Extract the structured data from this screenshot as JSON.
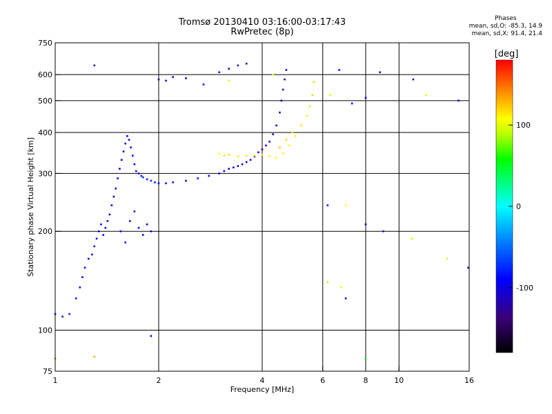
{
  "header": {
    "title_line1": "Tromsø 20130410 03:16:00-03:17:43",
    "title_line2": "RwPretec (8p)"
  },
  "stats": {
    "heading": "Phases",
    "o_line": "mean, sd,O: -85.3, 14.9",
    "x_line": "mean, sd,X:  91.4, 21.4"
  },
  "colorbar": {
    "label": "[deg]",
    "ticks": [
      {
        "value": 100,
        "label": "100"
      },
      {
        "value": 0,
        "label": "0"
      },
      {
        "value": -100,
        "label": "-100"
      }
    ],
    "range": [
      -180,
      180
    ]
  },
  "chart_data": {
    "type": "scatter",
    "xlabel": "Frequency [MHz]",
    "ylabel": "Stationary phase Virtual Height [km]",
    "xscale": "log",
    "yscale": "log",
    "xlim": [
      1,
      16
    ],
    "ylim": [
      75,
      750
    ],
    "xticks": [
      1,
      2,
      4,
      6,
      8,
      10,
      16
    ],
    "xtick_labels": [
      "1",
      "2",
      "4",
      "6",
      "8",
      "10",
      "16"
    ],
    "yticks": [
      75,
      100,
      200,
      300,
      400,
      500,
      600,
      750
    ],
    "ytick_labels": [
      "75",
      "100",
      "200",
      "300",
      "400",
      "500",
      "600",
      "750"
    ],
    "grid": true,
    "color_scale": "rainbow, -180 to 180 deg",
    "series": [
      {
        "points": [
          [
            1.0,
            112,
            -75
          ],
          [
            1.05,
            110,
            -85
          ],
          [
            1.1,
            112,
            -80
          ],
          [
            1.15,
            125,
            -80
          ],
          [
            1.18,
            135,
            -88
          ],
          [
            1.2,
            145,
            -95
          ],
          [
            1.22,
            155,
            -90
          ],
          [
            1.25,
            165,
            -92
          ],
          [
            1.28,
            170,
            -85
          ],
          [
            1.3,
            180,
            -95
          ],
          [
            1.32,
            190,
            -90
          ],
          [
            1.34,
            200,
            -100
          ],
          [
            1.36,
            210,
            -95
          ],
          [
            1.38,
            195,
            -88
          ],
          [
            1.4,
            205,
            -92
          ],
          [
            1.42,
            215,
            -100
          ],
          [
            1.44,
            225,
            -95
          ],
          [
            1.46,
            240,
            -90
          ],
          [
            1.48,
            255,
            -95
          ],
          [
            1.5,
            270,
            -88
          ],
          [
            1.52,
            290,
            -92
          ],
          [
            1.54,
            310,
            -90
          ],
          [
            1.56,
            330,
            -95
          ],
          [
            1.58,
            350,
            -92
          ],
          [
            1.6,
            370,
            -90
          ],
          [
            1.62,
            390,
            -95
          ],
          [
            1.64,
            380,
            -88
          ],
          [
            1.66,
            360,
            -90
          ],
          [
            1.68,
            340,
            -92
          ],
          [
            1.7,
            320,
            -88
          ],
          [
            1.72,
            305,
            -85
          ],
          [
            1.75,
            300,
            -82
          ],
          [
            1.78,
            295,
            -80
          ],
          [
            1.8,
            292,
            -78
          ],
          [
            1.85,
            288,
            -80
          ],
          [
            1.9,
            285,
            -78
          ],
          [
            1.95,
            282,
            -80
          ],
          [
            2.0,
            280,
            -82
          ],
          [
            2.1,
            280,
            -85
          ],
          [
            2.2,
            282,
            -85
          ],
          [
            2.4,
            285,
            -88
          ],
          [
            2.6,
            290,
            -85
          ],
          [
            2.8,
            295,
            -88
          ],
          [
            3.0,
            300,
            -95
          ],
          [
            3.1,
            305,
            -98
          ],
          [
            3.2,
            310,
            -100
          ],
          [
            3.3,
            313,
            -102
          ],
          [
            3.4,
            316,
            -100
          ],
          [
            3.5,
            320,
            -98
          ],
          [
            3.6,
            325,
            -100
          ],
          [
            3.7,
            330,
            -98
          ],
          [
            3.8,
            338,
            -100
          ],
          [
            3.9,
            348,
            -102
          ],
          [
            4.0,
            355,
            -105
          ],
          [
            4.1,
            365,
            -108
          ],
          [
            4.2,
            375,
            -110
          ],
          [
            4.3,
            395,
            -108
          ],
          [
            4.4,
            420,
            -110
          ],
          [
            4.5,
            460,
            -112
          ],
          [
            4.55,
            500,
            -112
          ],
          [
            4.6,
            540,
            -115
          ],
          [
            4.65,
            580,
            -115
          ],
          [
            4.7,
            620,
            -115
          ],
          [
            1.55,
            200,
            -90
          ],
          [
            1.6,
            185,
            -92
          ],
          [
            1.65,
            215,
            -95
          ],
          [
            1.7,
            230,
            -90
          ],
          [
            1.75,
            205,
            -88
          ],
          [
            1.8,
            195,
            -92
          ],
          [
            1.85,
            210,
            -95
          ],
          [
            1.9,
            200,
            -100
          ],
          [
            2.0,
            580,
            -110
          ],
          [
            2.1,
            575,
            -112
          ],
          [
            2.2,
            590,
            -108
          ],
          [
            2.4,
            585,
            -110
          ],
          [
            3.0,
            610,
            -115
          ],
          [
            3.2,
            625,
            -112
          ],
          [
            3.4,
            640,
            -115
          ],
          [
            3.6,
            648,
            -112
          ]
        ]
      },
      {
        "points": [
          [
            3.0,
            345,
            110
          ],
          [
            3.1,
            340,
            115
          ],
          [
            3.2,
            342,
            118
          ],
          [
            3.4,
            338,
            112
          ],
          [
            3.6,
            340,
            115
          ],
          [
            3.8,
            340,
            118
          ],
          [
            4.0,
            342,
            115
          ],
          [
            4.2,
            338,
            112
          ],
          [
            4.4,
            335,
            108
          ],
          [
            4.6,
            345,
            110
          ],
          [
            4.8,
            365,
            112
          ],
          [
            5.0,
            390,
            115
          ],
          [
            5.2,
            420,
            118
          ],
          [
            5.4,
            450,
            115
          ],
          [
            5.5,
            480,
            118
          ],
          [
            5.6,
            520,
            120
          ],
          [
            5.65,
            570,
            122
          ],
          [
            4.5,
            360,
            125
          ],
          [
            4.7,
            380,
            120
          ],
          [
            4.9,
            400,
            118
          ]
        ]
      },
      {
        "points": [
          [
            1.3,
            640,
            -130
          ],
          [
            1.9,
            96,
            -90
          ],
          [
            2.7,
            560,
            -95
          ],
          [
            3.2,
            575,
            100
          ],
          [
            4.3,
            600,
            105
          ],
          [
            6.3,
            520,
            100
          ],
          [
            6.7,
            620,
            -85
          ],
          [
            7.3,
            490,
            -90
          ],
          [
            8.0,
            510,
            -95
          ],
          [
            8.8,
            610,
            -90
          ],
          [
            11.0,
            580,
            -120
          ],
          [
            12.0,
            520,
            105
          ],
          [
            14.9,
            500,
            -100
          ],
          [
            6.2,
            240,
            -80
          ],
          [
            7.0,
            240,
            110
          ],
          [
            8.0,
            210,
            -95
          ],
          [
            9.0,
            200,
            -110
          ],
          [
            10.9,
            190,
            90
          ],
          [
            13.8,
            165,
            95
          ],
          [
            15.9,
            155,
            -105
          ],
          [
            6.2,
            140,
            120
          ],
          [
            6.8,
            135,
            105
          ],
          [
            7.0,
            125,
            -100
          ],
          [
            8.0,
            82,
            60
          ],
          [
            1.0,
            82,
            140
          ],
          [
            1.3,
            83,
            130
          ]
        ]
      }
    ]
  }
}
